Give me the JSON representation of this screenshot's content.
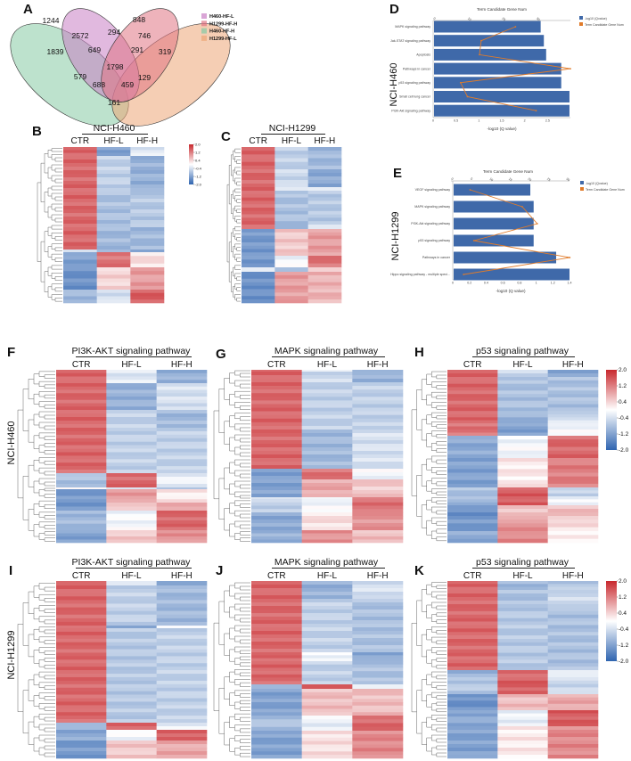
{
  "panel_labels": {
    "A": "A",
    "B": "B",
    "C": "C",
    "D": "D",
    "E": "E",
    "F": "F",
    "G": "G",
    "H": "H",
    "I": "I",
    "J": "J",
    "K": "K"
  },
  "row_labels": {
    "h460": "NCI-H460",
    "h1299": "NCI-H1299"
  },
  "venn": {
    "legend": [
      {
        "label": "H460-HF-L",
        "color": "#c97fc4"
      },
      {
        "label": "H1299-HF-H",
        "color": "#e07483"
      },
      {
        "label": "H460-HF-H",
        "color": "#86cba4"
      },
      {
        "label": "H1299-HF-L",
        "color": "#eda676"
      }
    ],
    "counts": [
      "1244",
      "848",
      "2572",
      "294",
      "746",
      "1839",
      "649",
      "291",
      "319",
      "1798",
      "579",
      "129",
      "688",
      "459",
      "161"
    ]
  },
  "colors": {
    "bar": "#3f69a9",
    "line": "#e07b2a",
    "high": "#c8282d",
    "low": "#2f64b0"
  },
  "chart_data": [
    {
      "id": "D",
      "type": "bar",
      "title": "Term Candidate Gene Num",
      "xlabel": "-log10  (Q value)",
      "ylabel": "NCI-H460",
      "categories": [
        "MAPK signaling pathway",
        "Jak-STAT signaling pathway",
        "Apoptosis",
        "Pathways in cancer",
        "p53 signaling pathway",
        "Small cell lung cancer",
        "PI3K-Akt signaling pathway"
      ],
      "series": [
        {
          "name": "-log10  (Qvalue)",
          "type": "bar",
          "values": [
            2.35,
            2.42,
            2.47,
            2.8,
            2.8,
            2.98,
            2.98
          ]
        },
        {
          "name": "Term Candidate Gene Num",
          "type": "line",
          "values": [
            24,
            14,
            13.5,
            40,
            8,
            10,
            30
          ]
        }
      ],
      "xlim": [
        0,
        3
      ],
      "xticks": [
        "0",
        "0.5",
        "1",
        "1.5",
        "2",
        "2.5"
      ],
      "top_xlim": [
        0,
        40
      ],
      "top_xticks": [
        "0",
        "10",
        "20",
        "30"
      ],
      "legend": "right"
    },
    {
      "id": "E",
      "type": "bar",
      "title": "Term Candidate Gene Num",
      "xlabel": "-log10  (Q value)",
      "ylabel": "NCI-H1299",
      "categories": [
        "VEGF signaling pathway",
        "MAPK signaling pathway",
        "PI3K-Akt signaling pathway",
        "p53 signaling pathway",
        "Pathways in cancer",
        "Hippo signaling pathway - multiple speci..."
      ],
      "series": [
        {
          "name": "-log10  (Qvalue)",
          "type": "bar",
          "values": [
            0.93,
            0.97,
            0.97,
            0.97,
            1.24,
            1.4
          ]
        },
        {
          "name": "Term Candidate Gene Num",
          "type": "line",
          "values": [
            5,
            18.6,
            22.5,
            6,
            31,
            3.3
          ]
        }
      ],
      "xlim": [
        0,
        1.4
      ],
      "xticks": [
        "0",
        "0.2",
        "0.4",
        "0.6",
        "0.8",
        "1",
        "1.2",
        "1.4"
      ],
      "top_xlim": [
        0,
        30
      ],
      "top_xticks": [
        "0",
        "5",
        "10",
        "15",
        "20",
        "25",
        "30"
      ],
      "legend": "right"
    },
    {
      "id": "B",
      "type": "heatmap",
      "title": "NCI-H460",
      "columns": [
        "CTR",
        "HF-L",
        "HF-H"
      ],
      "colorbar": [
        "2.0",
        "1.2",
        "0.4",
        "-0.4",
        "-1.2",
        "-2.0"
      ],
      "blocks": [
        [
          10,
          1.4,
          -1.2,
          -0.3
        ],
        [
          40,
          1.4,
          -0.6,
          -1.0
        ],
        [
          40,
          1.4,
          -0.8,
          -0.7
        ],
        [
          25,
          1.4,
          -0.9,
          -0.9
        ],
        [
          3,
          -0.2,
          -1.0,
          -1.2
        ],
        [
          17,
          -1.2,
          1.3,
          0.3
        ],
        [
          25,
          -1.4,
          0.4,
          0.9
        ],
        [
          15,
          -0.9,
          -0.4,
          1.5
        ]
      ]
    },
    {
      "id": "C",
      "type": "heatmap",
      "title": "NCI-H1299",
      "columns": [
        "CTR",
        "HF-L",
        "HF-H"
      ],
      "blocks": [
        [
          25,
          1.4,
          -0.6,
          -0.9
        ],
        [
          20,
          1.4,
          -0.5,
          -1.1
        ],
        [
          4,
          1.4,
          -0.1,
          -0.3
        ],
        [
          38,
          1.4,
          -0.8,
          -0.7
        ],
        [
          5,
          1.4,
          -1.0,
          -0.4
        ],
        [
          30,
          -1.3,
          0.5,
          0.9
        ],
        [
          13,
          -1.3,
          -0.1,
          1.3
        ],
        [
          5,
          -0.4,
          -0.7,
          0.4
        ],
        [
          35,
          -1.4,
          0.9,
          0.7
        ]
      ]
    },
    {
      "id": "F",
      "type": "heatmap",
      "title": "PI3K-AKT signaling pathway",
      "columns": [
        "CTR",
        "HF-L",
        "HF-H"
      ],
      "blocks": [
        [
          15,
          1.4,
          -0.3,
          -1.0
        ],
        [
          30,
          1.4,
          -1.0,
          -0.4
        ],
        [
          20,
          1.4,
          -0.6,
          -0.9
        ],
        [
          51,
          1.4,
          -0.6,
          -0.6
        ],
        [
          16,
          -0.8,
          1.4,
          -0.2
        ],
        [
          2,
          -0.1,
          -0.2,
          -0.8
        ],
        [
          15,
          -1.3,
          0.9,
          0.2
        ],
        [
          9,
          -1.3,
          0.4,
          0.9
        ],
        [
          22,
          -0.9,
          -0.1,
          1.4
        ],
        [
          14,
          -1.2,
          0.5,
          1.0
        ]
      ]
    },
    {
      "id": "G",
      "type": "heatmap",
      "title": "MAPK signaling pathway",
      "columns": [
        "CTR",
        "HF-L",
        "HF-H"
      ],
      "blocks": [
        [
          2,
          1.4,
          -0.3,
          -0.8
        ],
        [
          12,
          1.4,
          -0.5,
          -1.0
        ],
        [
          53,
          1.4,
          -0.6,
          -0.6
        ],
        [
          44,
          1.4,
          -0.9,
          -0.4
        ],
        [
          12,
          -1.2,
          1.3,
          -0.1
        ],
        [
          20,
          -1.2,
          0.8,
          0.5
        ],
        [
          2,
          -0.2,
          -0.3,
          1.3
        ],
        [
          15,
          -0.6,
          -0.1,
          1.3
        ],
        [
          20,
          -1.1,
          0.3,
          1.0
        ],
        [
          14,
          -1.0,
          1.0,
          0.6
        ]
      ]
    },
    {
      "id": "H",
      "type": "heatmap",
      "title": "p53 signaling pathway",
      "columns": [
        "CTR",
        "HF-L",
        "HF-H"
      ],
      "colorbar": [
        "2.0",
        "1.2",
        "0.4",
        "-0.4",
        "-1.2",
        "-2.0"
      ],
      "blocks": [
        [
          8,
          1.4,
          -0.5,
          -1.1
        ],
        [
          42,
          1.4,
          -0.8,
          -0.8
        ],
        [
          10,
          1.4,
          -1.0,
          -0.4
        ],
        [
          14,
          1.3,
          -1.2,
          -0.1
        ],
        [
          25,
          -1.1,
          -0.1,
          1.4
        ],
        [
          33,
          -1.2,
          0.2,
          1.2
        ],
        [
          10,
          -0.8,
          1.5,
          -0.6
        ],
        [
          10,
          -0.9,
          1.5,
          -0.2
        ],
        [
          16,
          -1.4,
          0.6,
          0.6
        ],
        [
          13,
          -1.3,
          1.0,
          0.3
        ],
        [
          13,
          -1.1,
          1.1,
          0.1
        ]
      ]
    },
    {
      "id": "I",
      "type": "heatmap",
      "title": "PI3K-AKT signaling pathway",
      "columns": [
        "CTR",
        "HF-L",
        "HF-H"
      ],
      "blocks": [
        [
          5,
          1.4,
          -0.4,
          -1.0
        ],
        [
          45,
          1.4,
          -0.6,
          -0.9
        ],
        [
          3,
          1.4,
          -1.2,
          -0.2
        ],
        [
          106,
          1.4,
          -0.7,
          -0.6
        ],
        [
          8,
          -1.0,
          1.5,
          -0.2
        ],
        [
          12,
          -1.1,
          -0.1,
          1.5
        ],
        [
          20,
          -1.3,
          0.5,
          0.8
        ]
      ]
    },
    {
      "id": "J",
      "type": "heatmap",
      "title": "MAPK signaling pathway",
      "columns": [
        "CTR",
        "HF-L",
        "HF-H"
      ],
      "blocks": [
        [
          20,
          1.4,
          -1.0,
          -0.4
        ],
        [
          60,
          1.4,
          -0.6,
          -0.8
        ],
        [
          10,
          1.4,
          -0.1,
          -1.1
        ],
        [
          26,
          1.4,
          -0.6,
          -0.8
        ],
        [
          5,
          -1.0,
          1.5,
          0.0
        ],
        [
          30,
          -1.2,
          0.6,
          0.6
        ],
        [
          17,
          -0.8,
          -0.2,
          1.4
        ],
        [
          31,
          -1.2,
          0.3,
          1.1
        ]
      ]
    },
    {
      "id": "K",
      "type": "heatmap",
      "title": "p53 signaling pathway",
      "columns": [
        "CTR",
        "HF-L",
        "HF-H"
      ],
      "colorbar": [
        "2.0",
        "1.2",
        "0.4",
        "-0.4",
        "-1.2",
        "-2.0"
      ],
      "blocks": [
        [
          10,
          1.4,
          -0.9,
          -0.7
        ],
        [
          20,
          1.4,
          -0.8,
          -0.5
        ],
        [
          70,
          1.4,
          -0.7,
          -0.8
        ],
        [
          8,
          -1.0,
          1.3,
          -0.1
        ],
        [
          19,
          -0.7,
          1.5,
          -0.5
        ],
        [
          18,
          -1.4,
          0.6,
          0.8
        ],
        [
          18,
          -1.1,
          -0.2,
          1.5
        ],
        [
          36,
          -1.2,
          0.2,
          1.1
        ]
      ]
    }
  ]
}
